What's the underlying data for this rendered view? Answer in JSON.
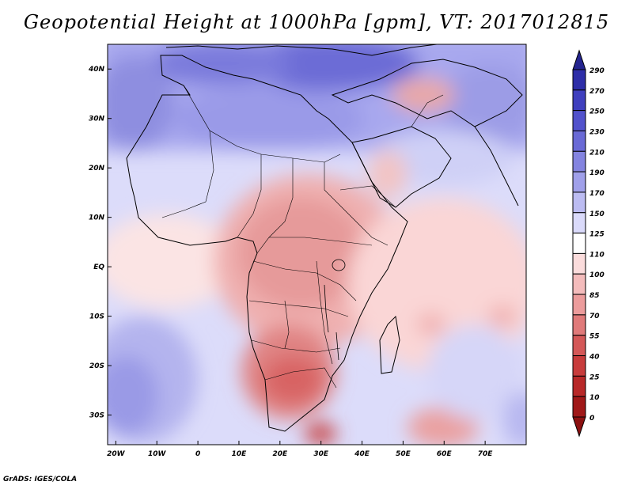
{
  "title": "Geopotential Height at 1000hPa [gpm], VT: 2017012815",
  "footer": "GrADS: IGES/COLA",
  "map": {
    "lon_range": [
      -22,
      80
    ],
    "lat_range": [
      -36,
      45
    ],
    "x_ticks": [
      "20W",
      "10W",
      "0",
      "10E",
      "20E",
      "30E",
      "40E",
      "50E",
      "60E",
      "70E"
    ],
    "x_tick_lons": [
      -20,
      -10,
      0,
      10,
      20,
      30,
      40,
      50,
      60,
      70
    ],
    "y_ticks": [
      "40N",
      "30N",
      "20N",
      "10N",
      "EQ",
      "10S",
      "20S",
      "30S"
    ],
    "y_tick_lats": [
      40,
      30,
      20,
      10,
      0,
      -10,
      -20,
      -30
    ]
  },
  "colorbar": {
    "levels": [
      "290",
      "270",
      "250",
      "230",
      "210",
      "190",
      "170",
      "150",
      "125",
      "110",
      "100",
      "85",
      "70",
      "55",
      "40",
      "25",
      "10",
      "0"
    ],
    "colors": [
      "#24248f",
      "#2e2ea8",
      "#3f3fbe",
      "#5252cc",
      "#6a6ad6",
      "#8484e0",
      "#a0a0ea",
      "#bcbcf2",
      "#dadafa",
      "#ffffff",
      "#fbdcdc",
      "#f4bcbc",
      "#ec9c9c",
      "#e07a7a",
      "#d45858",
      "#c83c3c",
      "#b82828",
      "#a01818",
      "#8c1010"
    ]
  }
}
